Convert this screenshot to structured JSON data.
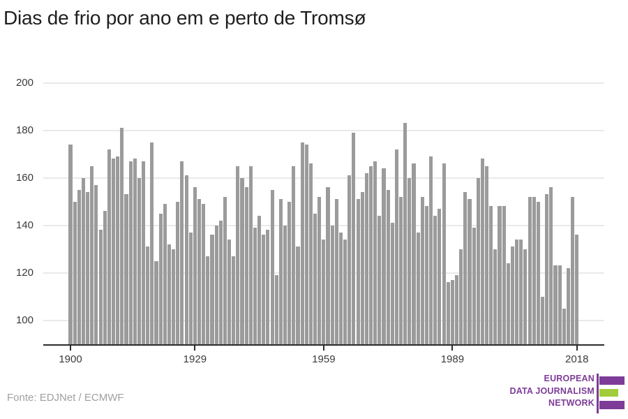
{
  "title": "Dias de frio por ano em e perto de Tromsø",
  "source": "Fonte: EDJNet / ECMWF",
  "logo": {
    "line1": "EUROPEAN",
    "line2": "DATA JOURNALISM",
    "line3": "NETWORK"
  },
  "colors": {
    "bar": "#9b9b9b",
    "grid": "#e9e9e9",
    "axis": "#2b2b2b",
    "title": "#1f1f1f",
    "tick_label": "#3a3a3a",
    "source": "#a0a0a0",
    "logo_purple": "#7d3c98",
    "logo_green": "#a2cd3a"
  },
  "chart_data": {
    "type": "bar",
    "title": "Dias de frio por ano em e perto de Tromsø",
    "xlabel": "",
    "ylabel": "",
    "x_tick_labels": [
      1900,
      1929,
      1959,
      1989,
      2018
    ],
    "y_tick_labels": [
      200,
      180,
      160,
      140,
      120,
      100
    ],
    "ylim": [
      90,
      205
    ],
    "grid": "horizontal",
    "legend": "none",
    "categories": [
      1900,
      1901,
      1902,
      1903,
      1904,
      1905,
      1906,
      1907,
      1908,
      1909,
      1910,
      1911,
      1912,
      1913,
      1914,
      1915,
      1916,
      1917,
      1918,
      1919,
      1920,
      1921,
      1922,
      1923,
      1924,
      1925,
      1926,
      1927,
      1928,
      1929,
      1930,
      1931,
      1932,
      1933,
      1934,
      1935,
      1936,
      1937,
      1938,
      1939,
      1940,
      1941,
      1942,
      1943,
      1944,
      1945,
      1946,
      1947,
      1948,
      1949,
      1950,
      1951,
      1952,
      1953,
      1954,
      1955,
      1956,
      1957,
      1958,
      1959,
      1960,
      1961,
      1962,
      1963,
      1964,
      1965,
      1966,
      1967,
      1968,
      1969,
      1970,
      1971,
      1972,
      1973,
      1974,
      1975,
      1976,
      1977,
      1978,
      1979,
      1980,
      1981,
      1982,
      1983,
      1984,
      1985,
      1986,
      1987,
      1988,
      1989,
      1990,
      1991,
      1992,
      1993,
      1994,
      1995,
      1996,
      1997,
      1998,
      1999,
      2000,
      2001,
      2002,
      2003,
      2004,
      2005,
      2006,
      2007,
      2008,
      2009,
      2010,
      2011,
      2012,
      2013,
      2014,
      2015,
      2016,
      2017,
      2018
    ],
    "values": [
      174,
      150,
      155,
      160,
      154,
      165,
      157,
      138,
      146,
      172,
      168,
      169,
      181,
      153,
      167,
      168,
      160,
      167,
      131,
      175,
      125,
      145,
      149,
      132,
      130,
      150,
      167,
      161,
      137,
      156,
      151,
      149,
      127,
      136,
      140,
      142,
      152,
      134,
      127,
      165,
      160,
      156,
      165,
      139,
      144,
      136,
      138,
      155,
      119,
      151,
      140,
      150,
      165,
      131,
      175,
      174,
      166,
      145,
      152,
      134,
      156,
      140,
      151,
      137,
      134,
      161,
      179,
      151,
      154,
      162,
      165,
      167,
      144,
      164,
      155,
      141,
      172,
      152,
      183,
      160,
      166,
      137,
      152,
      148,
      169,
      144,
      147,
      166,
      116,
      117,
      119,
      130,
      154,
      151,
      139,
      160,
      168,
      165,
      148,
      130,
      148,
      148,
      124,
      131,
      134,
      134,
      130,
      152,
      152,
      150,
      110,
      153,
      156,
      123,
      123,
      105,
      122,
      152,
      136
    ]
  }
}
